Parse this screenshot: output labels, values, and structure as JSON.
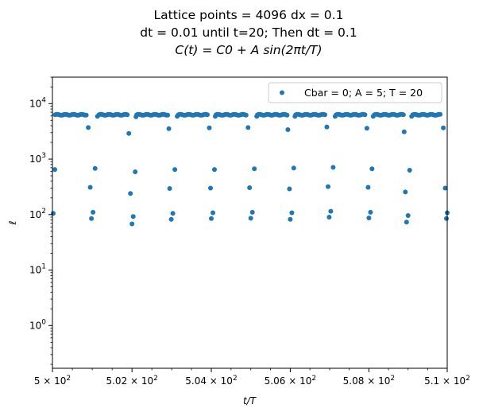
{
  "chart_data": {
    "type": "scatter",
    "title_lines": [
      "Lattice points = 4096 dx = 0.1",
      "dt = 0.01 until t=20; Then dt = 0.1",
      "C(t) = C0 + A sin(2πt/T)"
    ],
    "xlabel": "t/T",
    "ylabel": "ℓ",
    "x_scale": "log",
    "y_scale": "log",
    "xlim": [
      500,
      510
    ],
    "ylim": [
      0.17,
      30000
    ],
    "x_ticks": [
      {
        "value": 500,
        "mantissa": "5",
        "exp": "2"
      },
      {
        "value": 502,
        "mantissa": "5.02",
        "exp": "2"
      },
      {
        "value": 504,
        "mantissa": "5.04",
        "exp": "2"
      },
      {
        "value": 506,
        "mantissa": "5.06",
        "exp": "2"
      },
      {
        "value": 508,
        "mantissa": "5.08",
        "exp": "2"
      },
      {
        "value": 510,
        "mantissa": "5.1",
        "exp": "2"
      }
    ],
    "y_ticks": [
      {
        "value": 1,
        "base": "10",
        "exp": "0"
      },
      {
        "value": 10,
        "base": "10",
        "exp": "1"
      },
      {
        "value": 100,
        "base": "10",
        "exp": "2"
      },
      {
        "value": 1000,
        "base": "10",
        "exp": "3"
      },
      {
        "value": 10000,
        "base": "10",
        "exp": "4"
      }
    ],
    "grid": false,
    "legend_position": "top-right",
    "series": [
      {
        "name": "Cbar = 0; A = 5; T = 20",
        "color": "#1f77b4",
        "plateau_ranges": [
          [
            500.07,
            500.85
          ],
          [
            501.17,
            501.88
          ],
          [
            502.12,
            502.9
          ],
          [
            503.17,
            503.9
          ],
          [
            504.12,
            504.88
          ],
          [
            505.17,
            505.92
          ],
          [
            506.14,
            506.88
          ],
          [
            507.17,
            507.9
          ],
          [
            508.14,
            508.88
          ],
          [
            509.12,
            509.82
          ]
        ],
        "plateau_value": 6300,
        "points": [
          {
            "x": 500.02,
            "y": 105
          },
          {
            "x": 500.06,
            "y": 650
          },
          {
            "x": 500.9,
            "y": 3700
          },
          {
            "x": 500.95,
            "y": 310
          },
          {
            "x": 500.98,
            "y": 85
          },
          {
            "x": 501.02,
            "y": 110
          },
          {
            "x": 501.07,
            "y": 680
          },
          {
            "x": 501.13,
            "y": 5900
          },
          {
            "x": 501.92,
            "y": 2900
          },
          {
            "x": 501.96,
            "y": 240
          },
          {
            "x": 502.0,
            "y": 68
          },
          {
            "x": 502.03,
            "y": 92
          },
          {
            "x": 502.08,
            "y": 590
          },
          {
            "x": 502.1,
            "y": 5800
          },
          {
            "x": 502.93,
            "y": 3550
          },
          {
            "x": 502.95,
            "y": 295
          },
          {
            "x": 502.99,
            "y": 82
          },
          {
            "x": 503.03,
            "y": 105
          },
          {
            "x": 503.08,
            "y": 650
          },
          {
            "x": 503.14,
            "y": 5900
          },
          {
            "x": 503.95,
            "y": 3650
          },
          {
            "x": 503.98,
            "y": 300
          },
          {
            "x": 504.0,
            "y": 85
          },
          {
            "x": 504.04,
            "y": 108
          },
          {
            "x": 504.08,
            "y": 650
          },
          {
            "x": 504.1,
            "y": 5900
          },
          {
            "x": 504.93,
            "y": 3700
          },
          {
            "x": 504.97,
            "y": 305
          },
          {
            "x": 505.0,
            "y": 86
          },
          {
            "x": 505.04,
            "y": 110
          },
          {
            "x": 505.09,
            "y": 670
          },
          {
            "x": 505.15,
            "y": 5900
          },
          {
            "x": 505.94,
            "y": 3400
          },
          {
            "x": 505.98,
            "y": 290
          },
          {
            "x": 506.0,
            "y": 82
          },
          {
            "x": 506.04,
            "y": 108
          },
          {
            "x": 506.09,
            "y": 690
          },
          {
            "x": 506.12,
            "y": 5900
          },
          {
            "x": 506.93,
            "y": 3800
          },
          {
            "x": 506.96,
            "y": 320
          },
          {
            "x": 506.99,
            "y": 90
          },
          {
            "x": 507.03,
            "y": 115
          },
          {
            "x": 507.09,
            "y": 710
          },
          {
            "x": 507.14,
            "y": 5900
          },
          {
            "x": 507.95,
            "y": 3600
          },
          {
            "x": 507.98,
            "y": 310
          },
          {
            "x": 508.0,
            "y": 87
          },
          {
            "x": 508.04,
            "y": 110
          },
          {
            "x": 508.08,
            "y": 670
          },
          {
            "x": 508.11,
            "y": 5900
          },
          {
            "x": 508.9,
            "y": 3100
          },
          {
            "x": 508.93,
            "y": 255
          },
          {
            "x": 508.96,
            "y": 73
          },
          {
            "x": 509.0,
            "y": 96
          },
          {
            "x": 509.04,
            "y": 630
          },
          {
            "x": 509.09,
            "y": 5900
          },
          {
            "x": 509.9,
            "y": 3650
          },
          {
            "x": 509.95,
            "y": 300
          },
          {
            "x": 509.98,
            "y": 85
          },
          {
            "x": 510.0,
            "y": 108
          }
        ]
      }
    ]
  }
}
